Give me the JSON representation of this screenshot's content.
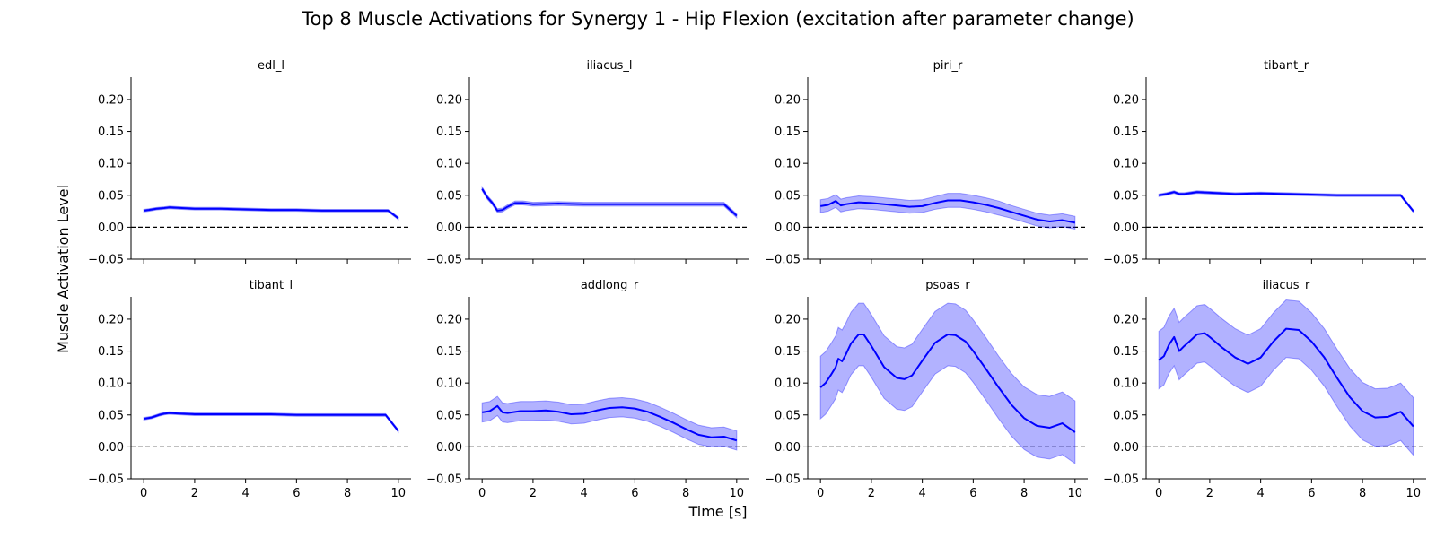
{
  "chart_data": {
    "type": "line",
    "title": "Top 8 Muscle Activations for Synergy 1 - Hip Flexion (excitation after parameter change)",
    "xlabel": "Time [s]",
    "ylabel": "Muscle Activation Level",
    "xlim": [
      -0.5,
      10.5
    ],
    "ylim": [
      -0.05,
      0.235
    ],
    "xticks": [
      0,
      2,
      4,
      6,
      8,
      10
    ],
    "yticks": [
      -0.05,
      0.0,
      0.05,
      0.1,
      0.15,
      0.2
    ],
    "ytick_labels": [
      "−0.05",
      "0.00",
      "0.05",
      "0.10",
      "0.15",
      "0.20"
    ],
    "xtick_labels": [
      "0",
      "2",
      "4",
      "6",
      "8",
      "10"
    ],
    "zero_line": "dashed",
    "colors": {
      "line": "#0000ff",
      "band": "#0000ff"
    },
    "panels": [
      {
        "name": "edl_l",
        "x": [
          0,
          0.2,
          0.5,
          0.8,
          1,
          1.5,
          2,
          2.5,
          3,
          4,
          5,
          6,
          7,
          8,
          9,
          9.6,
          10
        ],
        "mean": [
          0.026,
          0.027,
          0.029,
          0.03,
          0.031,
          0.03,
          0.029,
          0.029,
          0.029,
          0.028,
          0.027,
          0.027,
          0.026,
          0.026,
          0.026,
          0.026,
          0.014
        ],
        "std": [
          0.002,
          0.002,
          0.002,
          0.002,
          0.002,
          0.002,
          0.002,
          0.002,
          0.002,
          0.002,
          0.002,
          0.002,
          0.002,
          0.002,
          0.002,
          0.002,
          0.002
        ]
      },
      {
        "name": "iliacus_l",
        "x": [
          0,
          0.2,
          0.4,
          0.6,
          0.8,
          1,
          1.3,
          1.6,
          2,
          3,
          4,
          5,
          6,
          7,
          8,
          9,
          9.5,
          10
        ],
        "mean": [
          0.06,
          0.047,
          0.038,
          0.026,
          0.027,
          0.032,
          0.038,
          0.038,
          0.036,
          0.037,
          0.036,
          0.036,
          0.036,
          0.036,
          0.036,
          0.036,
          0.036,
          0.018
        ],
        "std": [
          0.003,
          0.003,
          0.003,
          0.003,
          0.003,
          0.003,
          0.003,
          0.003,
          0.003,
          0.003,
          0.003,
          0.003,
          0.003,
          0.003,
          0.003,
          0.003,
          0.003,
          0.003
        ]
      },
      {
        "name": "piri_r",
        "x": [
          0,
          0.3,
          0.6,
          0.8,
          1,
          1.5,
          2,
          2.5,
          3,
          3.5,
          4,
          4.5,
          5,
          5.5,
          6,
          6.5,
          7,
          7.5,
          8,
          8.5,
          9,
          9.5,
          10
        ],
        "mean": [
          0.033,
          0.035,
          0.041,
          0.034,
          0.036,
          0.039,
          0.038,
          0.036,
          0.034,
          0.032,
          0.033,
          0.038,
          0.042,
          0.042,
          0.039,
          0.035,
          0.03,
          0.024,
          0.018,
          0.012,
          0.009,
          0.011,
          0.007
        ],
        "std": [
          0.01,
          0.01,
          0.01,
          0.01,
          0.01,
          0.01,
          0.01,
          0.01,
          0.01,
          0.01,
          0.01,
          0.01,
          0.011,
          0.011,
          0.011,
          0.011,
          0.011,
          0.01,
          0.01,
          0.01,
          0.01,
          0.01,
          0.01
        ]
      },
      {
        "name": "tibant_r",
        "x": [
          0,
          0.3,
          0.6,
          0.8,
          1,
          1.5,
          2,
          3,
          4,
          5,
          6,
          7,
          8,
          9,
          9.5,
          10
        ],
        "mean": [
          0.05,
          0.052,
          0.055,
          0.052,
          0.052,
          0.055,
          0.054,
          0.052,
          0.053,
          0.052,
          0.051,
          0.05,
          0.05,
          0.05,
          0.05,
          0.025
        ],
        "std": [
          0.002,
          0.002,
          0.002,
          0.002,
          0.002,
          0.002,
          0.002,
          0.002,
          0.002,
          0.002,
          0.002,
          0.002,
          0.002,
          0.002,
          0.002,
          0.002
        ]
      },
      {
        "name": "tibant_l",
        "x": [
          0,
          0.3,
          0.6,
          0.8,
          1,
          1.5,
          2,
          3,
          4,
          5,
          6,
          7,
          8,
          9,
          9.5,
          10
        ],
        "mean": [
          0.044,
          0.046,
          0.05,
          0.052,
          0.053,
          0.052,
          0.051,
          0.051,
          0.051,
          0.051,
          0.05,
          0.05,
          0.05,
          0.05,
          0.05,
          0.025
        ],
        "std": [
          0.002,
          0.002,
          0.002,
          0.002,
          0.002,
          0.002,
          0.002,
          0.002,
          0.002,
          0.002,
          0.002,
          0.002,
          0.002,
          0.002,
          0.002,
          0.002
        ]
      },
      {
        "name": "addlong_r",
        "x": [
          0,
          0.3,
          0.6,
          0.8,
          1,
          1.5,
          2,
          2.5,
          3,
          3.5,
          4,
          4.5,
          5,
          5.5,
          6,
          6.5,
          7,
          7.5,
          8,
          8.5,
          9,
          9.5,
          10
        ],
        "mean": [
          0.054,
          0.056,
          0.064,
          0.054,
          0.053,
          0.056,
          0.056,
          0.057,
          0.055,
          0.051,
          0.052,
          0.057,
          0.061,
          0.062,
          0.06,
          0.055,
          0.047,
          0.038,
          0.028,
          0.019,
          0.015,
          0.016,
          0.01
        ],
        "std": [
          0.015,
          0.015,
          0.015,
          0.015,
          0.015,
          0.015,
          0.015,
          0.015,
          0.015,
          0.015,
          0.015,
          0.015,
          0.015,
          0.015,
          0.015,
          0.015,
          0.015,
          0.015,
          0.015,
          0.015,
          0.015,
          0.015,
          0.015
        ]
      },
      {
        "name": "psoas_r",
        "x": [
          0,
          0.2,
          0.4,
          0.6,
          0.7,
          0.85,
          1,
          1.2,
          1.5,
          1.7,
          2,
          2.5,
          3,
          3.3,
          3.6,
          4,
          4.5,
          5,
          5.3,
          5.7,
          6,
          6.5,
          7,
          7.5,
          8,
          8.5,
          9,
          9.5,
          10
        ],
        "mean": [
          0.093,
          0.1,
          0.112,
          0.125,
          0.138,
          0.134,
          0.145,
          0.162,
          0.176,
          0.176,
          0.158,
          0.125,
          0.108,
          0.106,
          0.112,
          0.135,
          0.163,
          0.176,
          0.175,
          0.165,
          0.15,
          0.122,
          0.093,
          0.066,
          0.045,
          0.033,
          0.03,
          0.037,
          0.023
        ],
        "std": [
          0.049,
          0.049,
          0.049,
          0.049,
          0.049,
          0.049,
          0.049,
          0.049,
          0.049,
          0.049,
          0.049,
          0.049,
          0.049,
          0.049,
          0.049,
          0.049,
          0.049,
          0.049,
          0.049,
          0.049,
          0.049,
          0.049,
          0.049,
          0.049,
          0.049,
          0.049,
          0.049,
          0.049,
          0.049
        ]
      },
      {
        "name": "iliacus_r",
        "x": [
          0,
          0.2,
          0.4,
          0.6,
          0.8,
          1,
          1.2,
          1.5,
          1.8,
          2,
          2.5,
          3,
          3.5,
          4,
          4.5,
          5,
          5.5,
          6,
          6.5,
          7,
          7.5,
          8,
          8.5,
          9,
          9.5,
          10
        ],
        "mean": [
          0.136,
          0.142,
          0.16,
          0.172,
          0.15,
          0.158,
          0.165,
          0.176,
          0.178,
          0.172,
          0.155,
          0.14,
          0.13,
          0.14,
          0.165,
          0.185,
          0.183,
          0.165,
          0.14,
          0.108,
          0.078,
          0.056,
          0.046,
          0.047,
          0.055,
          0.032
        ],
        "std": [
          0.045,
          0.045,
          0.045,
          0.045,
          0.045,
          0.045,
          0.045,
          0.045,
          0.045,
          0.045,
          0.045,
          0.045,
          0.045,
          0.045,
          0.045,
          0.045,
          0.045,
          0.045,
          0.045,
          0.045,
          0.045,
          0.045,
          0.045,
          0.045,
          0.045,
          0.045
        ]
      }
    ]
  }
}
